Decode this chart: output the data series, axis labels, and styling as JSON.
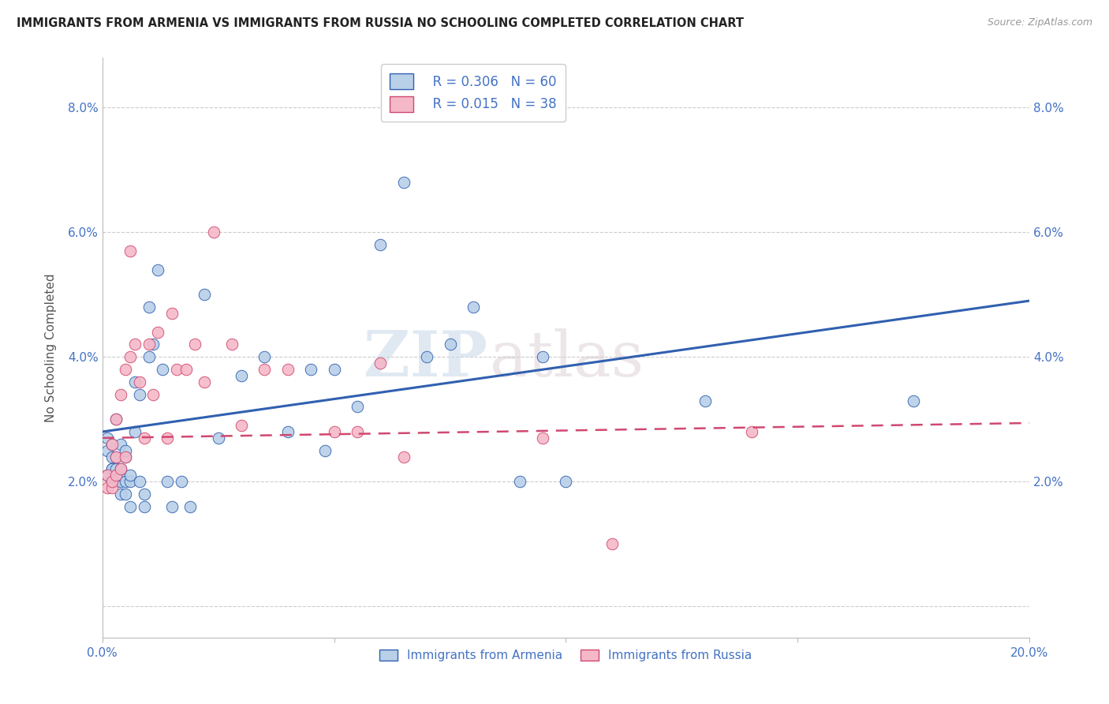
{
  "title": "IMMIGRANTS FROM ARMENIA VS IMMIGRANTS FROM RUSSIA NO SCHOOLING COMPLETED CORRELATION CHART",
  "source": "Source: ZipAtlas.com",
  "ylabel": "No Schooling Completed",
  "xlim": [
    0.0,
    0.2
  ],
  "ylim": [
    -0.005,
    0.088
  ],
  "xticks": [
    0.0,
    0.05,
    0.1,
    0.15,
    0.2
  ],
  "yticks": [
    0.0,
    0.02,
    0.04,
    0.06,
    0.08
  ],
  "color_armenia": "#b8d0e8",
  "color_russia": "#f5b8c8",
  "color_trendline_armenia": "#3060b0",
  "color_trendline_russia": "#d04870",
  "watermark_zip": "ZIP",
  "watermark_atlas": "atlas",
  "legend_r1": "R = 0.306",
  "legend_n1": "N = 60",
  "legend_r2": "R = 0.015",
  "legend_n2": "N = 38",
  "armenia_x": [
    0.001,
    0.001,
    0.001,
    0.002,
    0.002,
    0.002,
    0.002,
    0.002,
    0.003,
    0.003,
    0.003,
    0.003,
    0.003,
    0.003,
    0.004,
    0.004,
    0.004,
    0.004,
    0.004,
    0.005,
    0.005,
    0.005,
    0.005,
    0.006,
    0.006,
    0.006,
    0.007,
    0.007,
    0.008,
    0.008,
    0.009,
    0.009,
    0.01,
    0.01,
    0.011,
    0.012,
    0.013,
    0.014,
    0.015,
    0.017,
    0.019,
    0.022,
    0.025,
    0.03,
    0.035,
    0.04,
    0.045,
    0.048,
    0.05,
    0.055,
    0.06,
    0.065,
    0.07,
    0.075,
    0.08,
    0.09,
    0.095,
    0.1,
    0.13,
    0.175
  ],
  "armenia_y": [
    0.027,
    0.025,
    0.021,
    0.02,
    0.022,
    0.022,
    0.024,
    0.026,
    0.02,
    0.021,
    0.021,
    0.022,
    0.024,
    0.03,
    0.018,
    0.02,
    0.021,
    0.022,
    0.026,
    0.018,
    0.02,
    0.024,
    0.025,
    0.016,
    0.02,
    0.021,
    0.028,
    0.036,
    0.02,
    0.034,
    0.016,
    0.018,
    0.04,
    0.048,
    0.042,
    0.054,
    0.038,
    0.02,
    0.016,
    0.02,
    0.016,
    0.05,
    0.027,
    0.037,
    0.04,
    0.028,
    0.038,
    0.025,
    0.038,
    0.032,
    0.058,
    0.068,
    0.04,
    0.042,
    0.048,
    0.02,
    0.04,
    0.02,
    0.033,
    0.033
  ],
  "russia_x": [
    0.001,
    0.001,
    0.002,
    0.002,
    0.002,
    0.003,
    0.003,
    0.003,
    0.004,
    0.004,
    0.005,
    0.005,
    0.006,
    0.006,
    0.007,
    0.008,
    0.009,
    0.01,
    0.011,
    0.012,
    0.014,
    0.015,
    0.016,
    0.018,
    0.02,
    0.022,
    0.024,
    0.028,
    0.03,
    0.035,
    0.04,
    0.05,
    0.055,
    0.06,
    0.065,
    0.095,
    0.11,
    0.14
  ],
  "russia_y": [
    0.019,
    0.021,
    0.019,
    0.02,
    0.026,
    0.021,
    0.024,
    0.03,
    0.022,
    0.034,
    0.024,
    0.038,
    0.057,
    0.04,
    0.042,
    0.036,
    0.027,
    0.042,
    0.034,
    0.044,
    0.027,
    0.047,
    0.038,
    0.038,
    0.042,
    0.036,
    0.06,
    0.042,
    0.029,
    0.038,
    0.038,
    0.028,
    0.028,
    0.039,
    0.024,
    0.027,
    0.01,
    0.028
  ]
}
